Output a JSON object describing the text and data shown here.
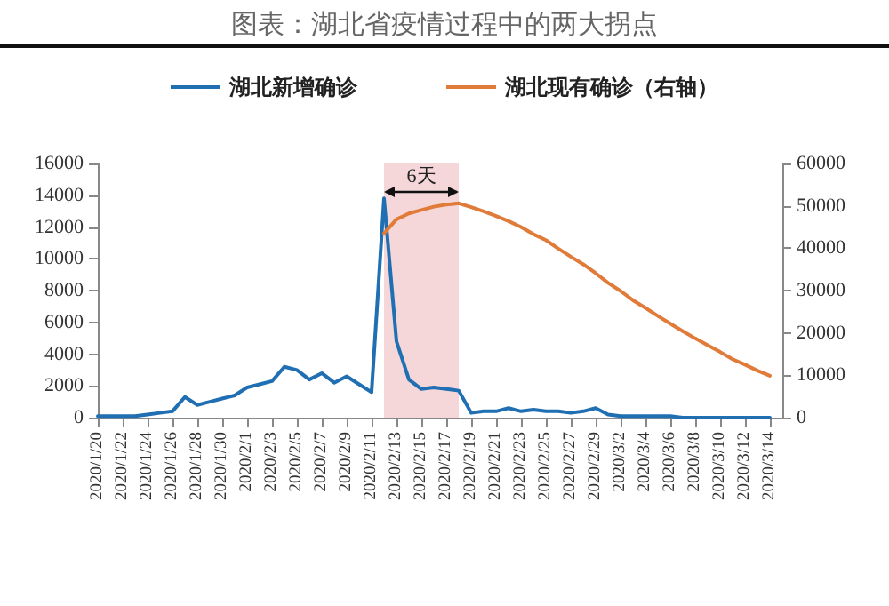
{
  "chart_data": {
    "type": "line",
    "title": "图表：湖北省疫情过程中的两大拐点",
    "legend": "top",
    "grid": false,
    "marker": "none",
    "line_style": "solid",
    "x": [
      "2020-01-20",
      "2020-01-21",
      "2020-01-22",
      "2020-01-23",
      "2020-01-24",
      "2020-01-25",
      "2020-01-26",
      "2020-01-27",
      "2020-01-28",
      "2020-01-29",
      "2020-01-30",
      "2020-01-31",
      "2020-02-01",
      "2020-02-02",
      "2020-02-03",
      "2020-02-04",
      "2020-02-05",
      "2020-02-06",
      "2020-02-07",
      "2020-02-08",
      "2020-02-09",
      "2020-02-10",
      "2020-02-11",
      "2020-02-12",
      "2020-02-13",
      "2020-02-14",
      "2020-02-15",
      "2020-02-16",
      "2020-02-17",
      "2020-02-18",
      "2020-02-19",
      "2020-02-20",
      "2020-02-21",
      "2020-02-22",
      "2020-02-23",
      "2020-02-24",
      "2020-02-25",
      "2020-02-26",
      "2020-02-27",
      "2020-02-28",
      "2020-02-29",
      "2020-03-01",
      "2020-03-02",
      "2020-03-03",
      "2020-03-04",
      "2020-03-05",
      "2020-03-06",
      "2020-03-07",
      "2020-03-08",
      "2020-03-09",
      "2020-03-10",
      "2020-03-11",
      "2020-03-12",
      "2020-03-13",
      "2020-03-14"
    ],
    "series": [
      {
        "name": "湖北新增确诊",
        "color": "#1f6fb2",
        "values": [
          100,
          100,
          100,
          100,
          200,
          300,
          400,
          1300,
          800,
          1000,
          1200,
          1400,
          1900,
          2100,
          2300,
          3200,
          3000,
          2400,
          2800,
          2200,
          2600,
          2100,
          1600,
          13800,
          4800,
          2400,
          1800,
          1900,
          1800,
          1700,
          300,
          400,
          400,
          600,
          400,
          500,
          400,
          400,
          300,
          400,
          600,
          200,
          100,
          100,
          100,
          100,
          100,
          0,
          0,
          0,
          0,
          0,
          0,
          0,
          0
        ]
      },
      {
        "name": "湖北现有确诊（右轴）",
        "color": "#e07b39",
        "axis": "y2",
        "values": [
          null,
          null,
          null,
          null,
          null,
          null,
          null,
          null,
          null,
          null,
          null,
          null,
          null,
          null,
          null,
          null,
          null,
          null,
          null,
          null,
          null,
          null,
          null,
          43500,
          46800,
          48200,
          49000,
          49800,
          50300,
          50600,
          49700,
          48700,
          47600,
          46400,
          45000,
          43300,
          41900,
          39900,
          38000,
          36200,
          34100,
          31800,
          29900,
          27700,
          25900,
          24000,
          22200,
          20400,
          18700,
          17100,
          15500,
          13800,
          12500,
          11100,
          9900
        ]
      }
    ],
    "xlim": [
      "2020-01-20",
      "2020-03-15"
    ],
    "xticks": [
      {
        "value": "2020-01-20",
        "label": "2020/1/20"
      },
      {
        "value": "2020-01-22",
        "label": "2020/1/22"
      },
      {
        "value": "2020-01-24",
        "label": "2020/1/24"
      },
      {
        "value": "2020-01-26",
        "label": "2020/1/26"
      },
      {
        "value": "2020-01-28",
        "label": "2020/1/28"
      },
      {
        "value": "2020-01-30",
        "label": "2020/1/30"
      },
      {
        "value": "2020-02-01",
        "label": "2020/2/1"
      },
      {
        "value": "2020-02-03",
        "label": "2020/2/3"
      },
      {
        "value": "2020-02-05",
        "label": "2020/2/5"
      },
      {
        "value": "2020-02-07",
        "label": "2020/2/7"
      },
      {
        "value": "2020-02-09",
        "label": "2020/2/9"
      },
      {
        "value": "2020-02-11",
        "label": "2020/2/11"
      },
      {
        "value": "2020-02-13",
        "label": "2020/2/13"
      },
      {
        "value": "2020-02-15",
        "label": "2020/2/15"
      },
      {
        "value": "2020-02-17",
        "label": "2020/2/17"
      },
      {
        "value": "2020-02-19",
        "label": "2020/2/19"
      },
      {
        "value": "2020-02-21",
        "label": "2020/2/21"
      },
      {
        "value": "2020-02-23",
        "label": "2020/2/23"
      },
      {
        "value": "2020-02-25",
        "label": "2020/2/25"
      },
      {
        "value": "2020-02-27",
        "label": "2020/2/27"
      },
      {
        "value": "2020-02-29",
        "label": "2020/2/29"
      },
      {
        "value": "2020-03-02",
        "label": "2020/3/2"
      },
      {
        "value": "2020-03-04",
        "label": "2020/3/4"
      },
      {
        "value": "2020-03-06",
        "label": "2020/3/6"
      },
      {
        "value": "2020-03-08",
        "label": "2020/3/8"
      },
      {
        "value": "2020-03-10",
        "label": "2020/3/10"
      },
      {
        "value": "2020-03-12",
        "label": "2020/3/12"
      },
      {
        "value": "2020-03-14",
        "label": "2020/3/14"
      }
    ],
    "ylim": [
      0,
      16000
    ],
    "yticks": [
      0,
      2000,
      4000,
      6000,
      8000,
      10000,
      12000,
      14000,
      16000
    ],
    "y2lim": [
      0,
      60000
    ],
    "y2ticks": [
      0,
      10000,
      20000,
      30000,
      40000,
      50000,
      60000
    ],
    "bands": [
      {
        "axis": "x",
        "from": "2020-02-12",
        "to": "2020-02-18",
        "label": "6天",
        "color": "#f2c9cc"
      }
    ]
  }
}
